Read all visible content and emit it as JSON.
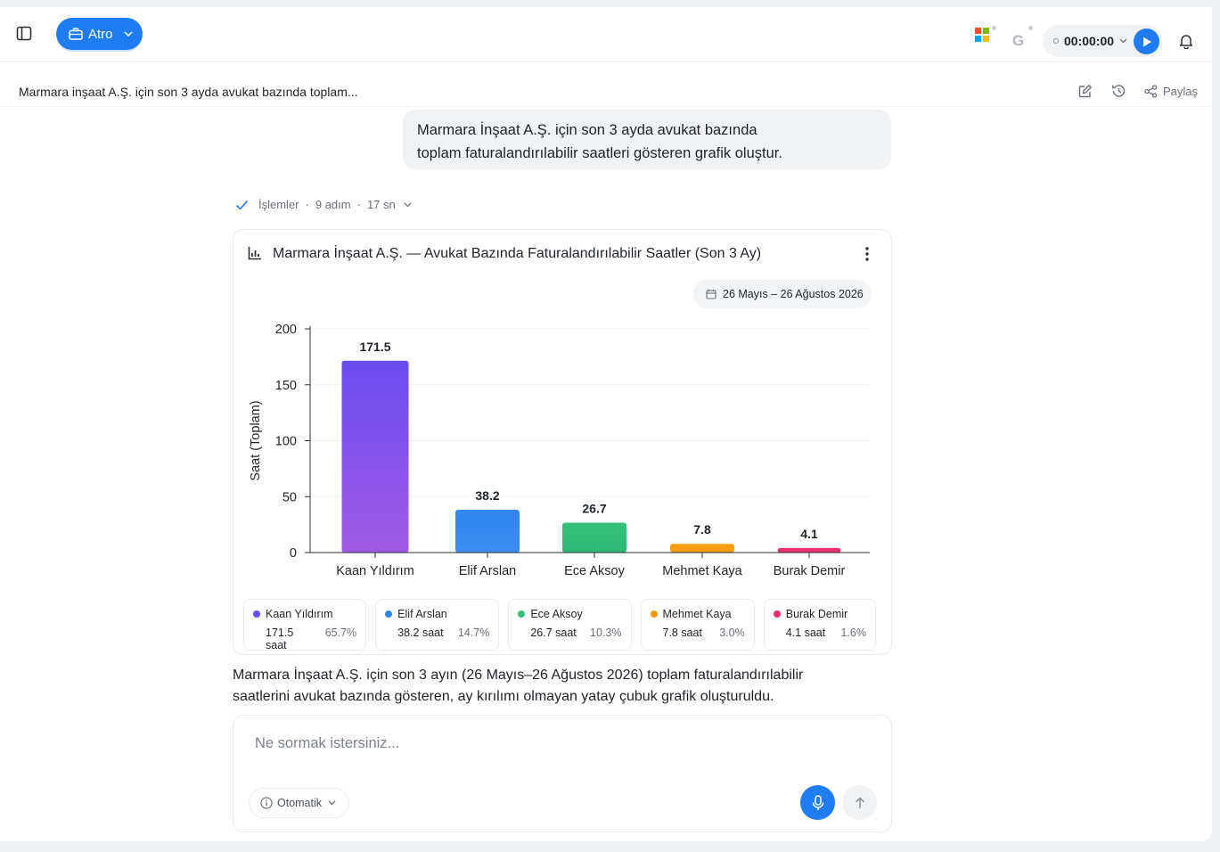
{
  "topbar": {
    "workspace_label": "Atro",
    "timer": "00:00:00",
    "google_letter": "G"
  },
  "conversation": {
    "title": "Marmara inşaat A.Ş. için son 3 ayda avukat bazında toplam...",
    "share_label": "Paylaş"
  },
  "user_message": {
    "line1": "Marmara İnşaat A.Ş. için son 3 ayda avukat bazında",
    "line2": "toplam faturalandırılabilir saatleri gösteren grafik oluştur."
  },
  "steps": {
    "label": "İşlemler",
    "count": "9 adım",
    "duration": "17 sn"
  },
  "chart_card": {
    "title": "Marmara İnşaat A.Ş. — Avukat Bazında Faturalandırılabilir Saatler (Son 3 Ay)",
    "date_range": "26 Mayıs – 26 Ağustos 2026"
  },
  "chart_data": {
    "type": "bar",
    "categories": [
      "Kaan Yıldırım",
      "Elif Arslan",
      "Ece Aksoy",
      "Mehmet Kaya",
      "Burak Demir"
    ],
    "values": [
      171.5,
      38.2,
      26.7,
      7.8,
      4.1
    ],
    "value_labels": [
      "171.5",
      "38.2",
      "26.7",
      "7.8",
      "4.1"
    ],
    "colors": [
      "#7b4ff0",
      "#2f86ef",
      "#33c17a",
      "#f5a214",
      "#ea2f74"
    ],
    "xlabel": "",
    "ylabel": "Saat (Toplam)",
    "ylim": [
      0,
      200
    ],
    "yticks": [
      "0",
      "50",
      "100",
      "150",
      "200"
    ],
    "grid": true
  },
  "legend": [
    {
      "name": "Kaan Yıldırım",
      "hours": "171.5 saat",
      "pct": "65.7%",
      "color": "#6a4cf0"
    },
    {
      "name": "Elif Arslan",
      "hours": "38.2 saat",
      "pct": "14.7%",
      "color": "#2f86ef"
    },
    {
      "name": "Ece Aksoy",
      "hours": "26.7 saat",
      "pct": "10.3%",
      "color": "#33c17a"
    },
    {
      "name": "Mehmet Kaya",
      "hours": "7.8 saat",
      "pct": "3.0%",
      "color": "#f59a0c"
    },
    {
      "name": "Burak Demir",
      "hours": "4.1 saat",
      "pct": "1.6%",
      "color": "#ea2f74"
    }
  ],
  "answer": {
    "line1": "Marmara İnşaat A.Ş. için son 3 ayın (26 Mayıs–26 Ağustos 2026) toplam faturalandırılabilir",
    "line2": "saatlerini avukat bazında gösteren, ay kırılımı olmayan yatay çubuk grafik oluşturuldu."
  },
  "composer": {
    "placeholder": "Ne sormak istersiniz...",
    "mode_label": "Otomatik"
  },
  "colors": {
    "accent": "#1f7cf3"
  }
}
